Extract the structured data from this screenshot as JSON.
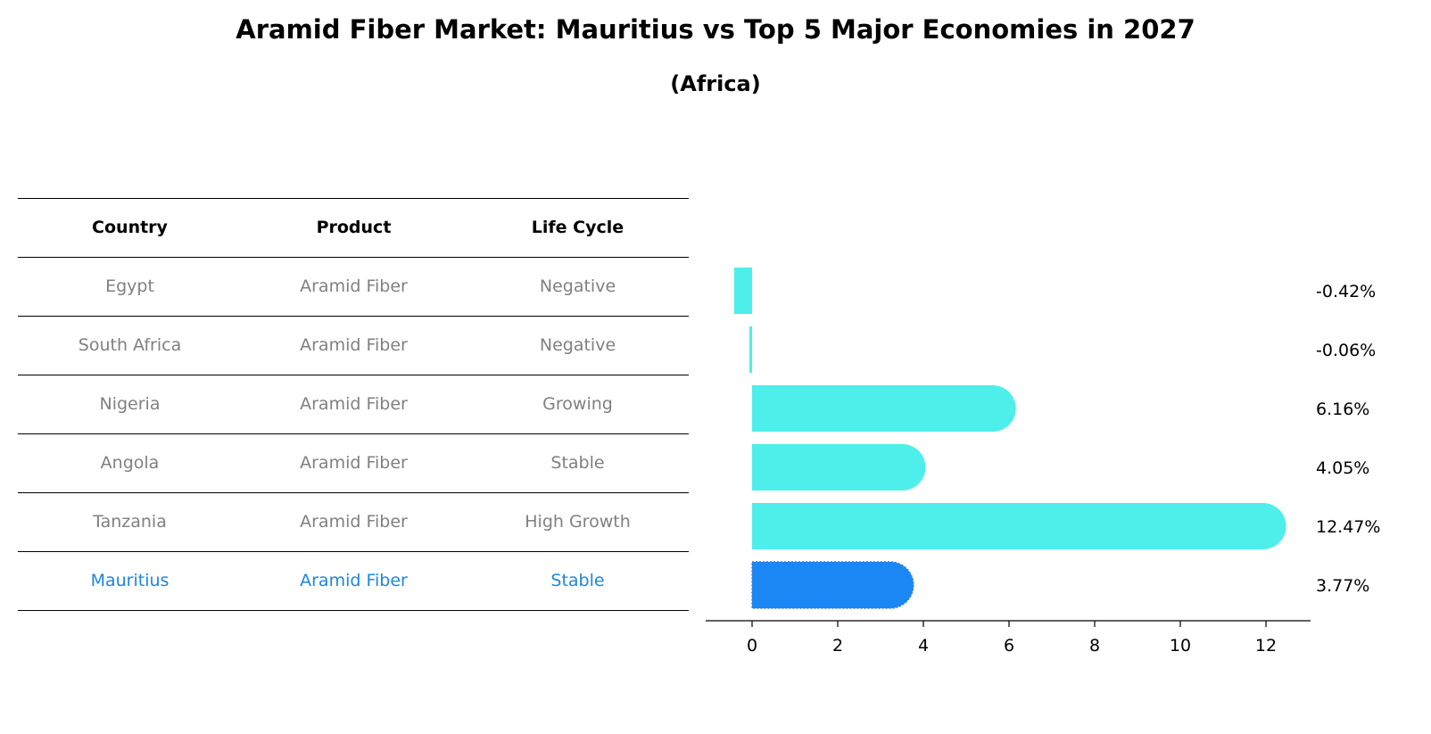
{
  "title": "Aramid Fiber Market: Mauritius vs Top 5 Major Economies in 2027",
  "subtitle": "(Africa)",
  "table": {
    "headers": [
      "Country",
      "Product",
      "Life Cycle"
    ],
    "rows": [
      {
        "country": "Egypt",
        "product": "Aramid Fiber",
        "life_cycle": "Negative"
      },
      {
        "country": "South Africa",
        "product": "Aramid Fiber",
        "life_cycle": "Negative"
      },
      {
        "country": "Nigeria",
        "product": "Aramid Fiber",
        "life_cycle": "Growing"
      },
      {
        "country": "Angola",
        "product": "Aramid Fiber",
        "life_cycle": "Stable"
      },
      {
        "country": "Tanzania",
        "product": "Aramid Fiber",
        "life_cycle": "High Growth"
      },
      {
        "country": "Mauritius",
        "product": "Aramid Fiber",
        "life_cycle": "Stable"
      }
    ],
    "highlight_color": "#1a87e0",
    "text_color": "#808080"
  },
  "chart_data": {
    "type": "bar",
    "orientation": "horizontal",
    "categories": [
      "Egypt",
      "South Africa",
      "Nigeria",
      "Angola",
      "Tanzania",
      "Mauritius"
    ],
    "values": [
      -0.42,
      -0.06,
      6.16,
      4.05,
      12.47,
      3.77
    ],
    "value_labels": [
      "-0.42%",
      "-0.06%",
      "6.16%",
      "4.05%",
      "12.47%",
      "3.77%"
    ],
    "xlim": [
      -1.1,
      13.1
    ],
    "xticks": [
      0,
      2,
      4,
      6,
      8,
      10,
      12
    ],
    "bar_color": "#4eeeea",
    "highlight_color": "#1a87f5",
    "highlight_category": "Mauritius",
    "grid": false
  }
}
